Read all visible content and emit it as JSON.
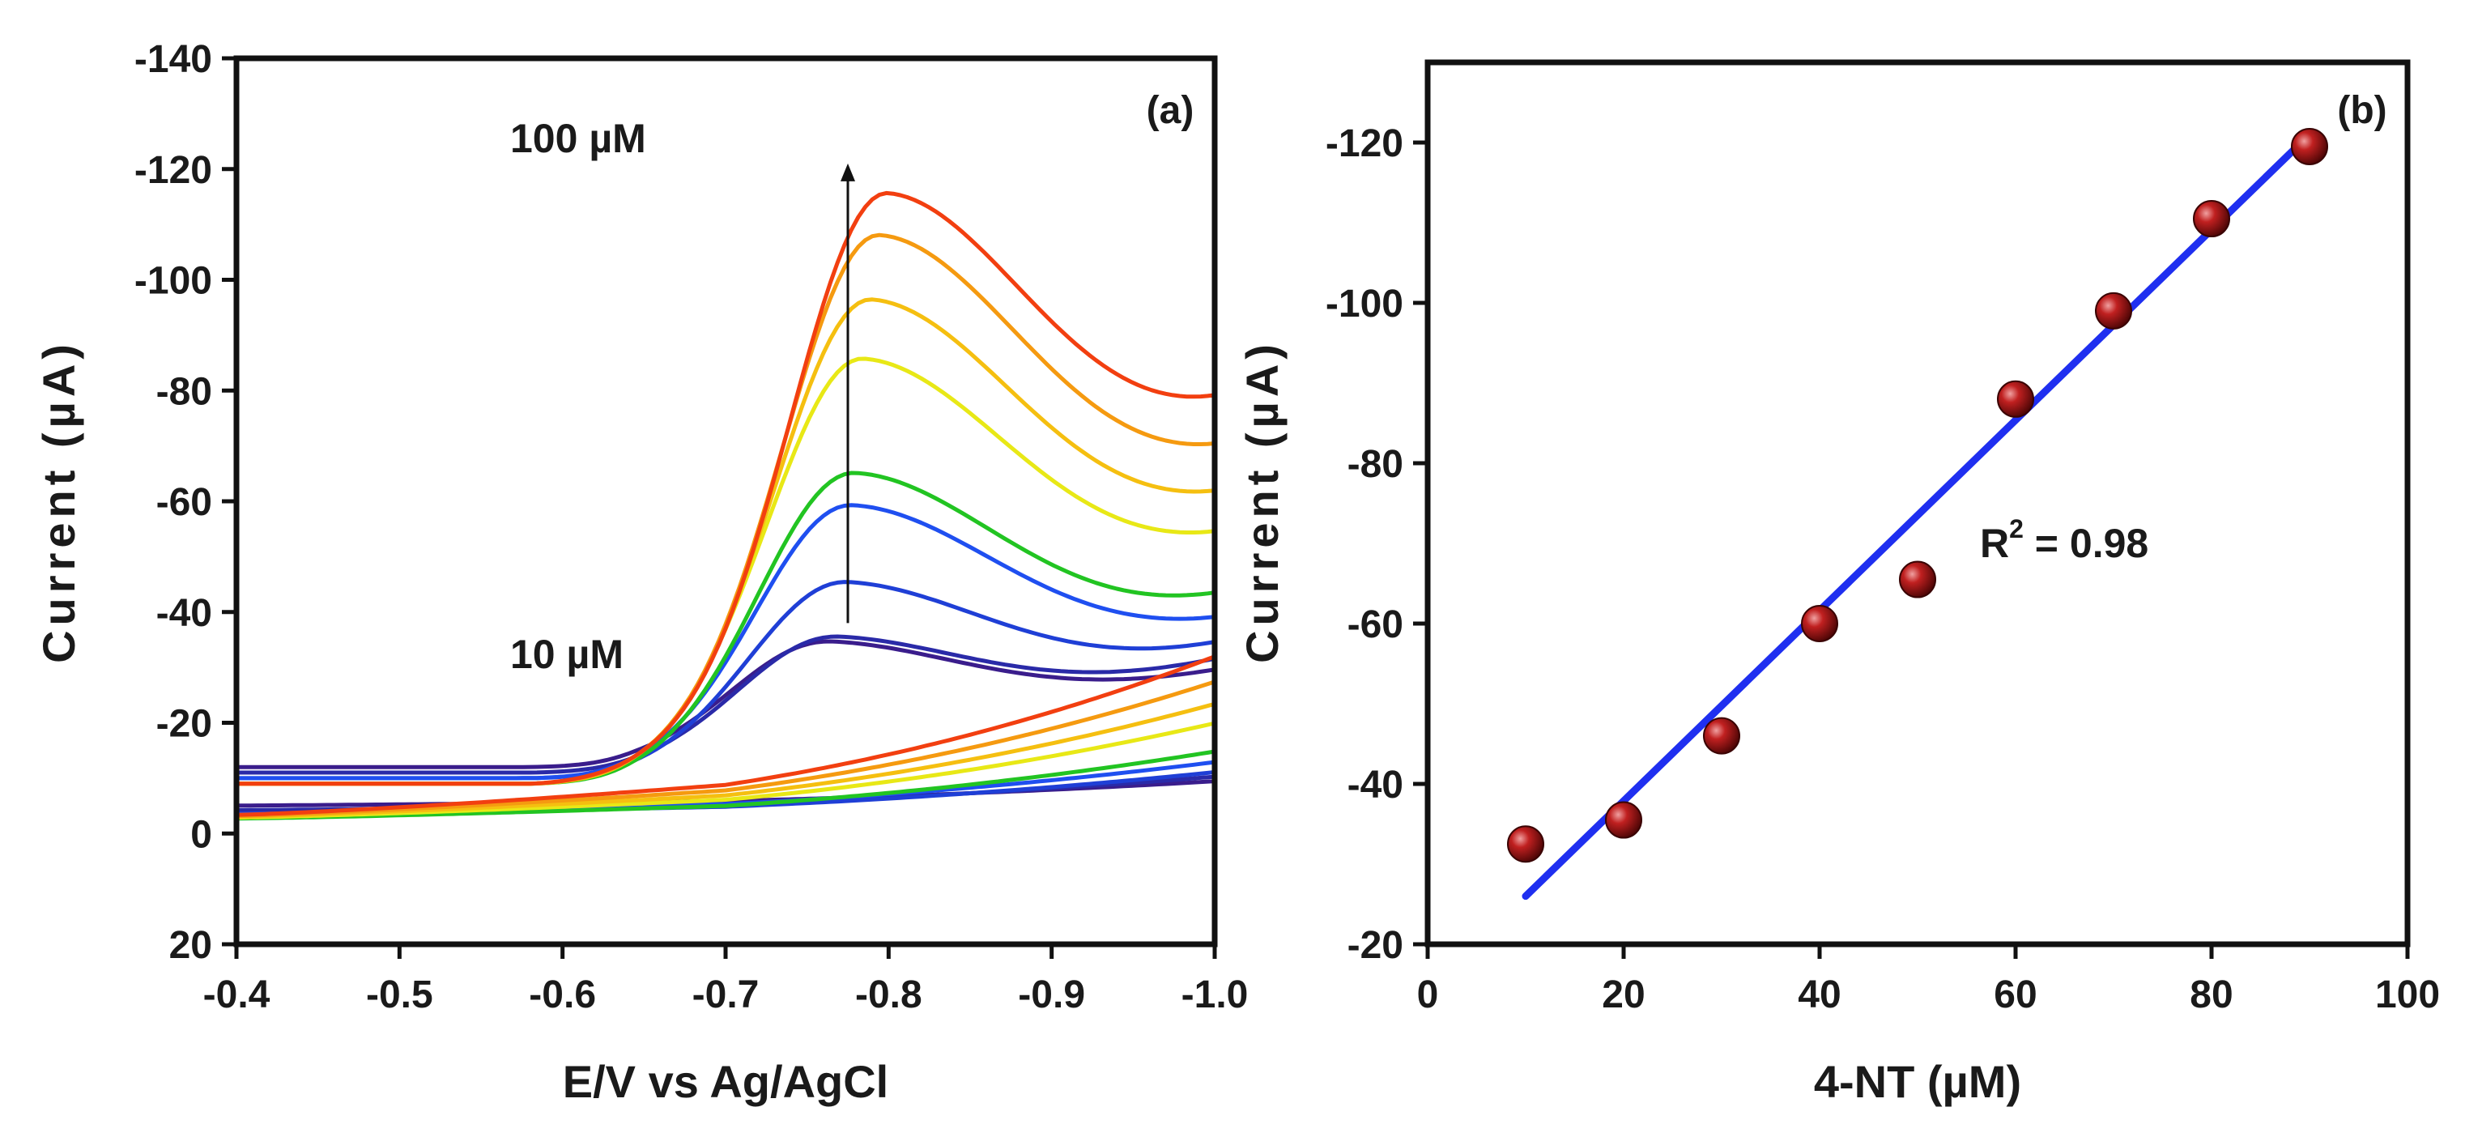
{
  "chart_data": [
    {
      "type": "line",
      "panel_label": "(a)",
      "xlabel": "E/V vs Ag/AgCl",
      "ylabel": "Current (µA)",
      "xlim": [
        -0.4,
        -1.0
      ],
      "ylim": [
        20,
        -140
      ],
      "x_ticks": [
        "-0.4",
        "-0.5",
        "-0.6",
        "-0.7",
        "-0.8",
        "-0.9",
        "-1.0"
      ],
      "y_ticks": [
        "20",
        "0",
        "-20",
        "-40",
        "-60",
        "-80",
        "-100",
        "-120",
        "-140"
      ],
      "annotations": {
        "top": "100 µM",
        "bottom": "10 µM"
      },
      "arrow": {
        "x": -0.775,
        "y_from": -38,
        "y_to": -121
      },
      "series": [
        {
          "color": "#3a1d8c",
          "peak_x": -0.765,
          "peak_y": -35,
          "start_y": -12,
          "end_y": -29
        },
        {
          "color": "#2a2aa8",
          "peak_x": -0.77,
          "peak_y": -36,
          "start_y": -11,
          "end_y": -31
        },
        {
          "color": "#1f3fd6",
          "peak_x": -0.775,
          "peak_y": -46,
          "start_y": -10,
          "end_y": -33
        },
        {
          "color": "#1f4ff0",
          "peak_x": -0.778,
          "peak_y": -60,
          "start_y": -10,
          "end_y": -36
        },
        {
          "color": "#22c422",
          "peak_x": -0.78,
          "peak_y": -66,
          "start_y": -9,
          "end_y": -40
        },
        {
          "color": "#e8e816",
          "peak_x": -0.785,
          "peak_y": -87,
          "start_y": -9,
          "end_y": -49
        },
        {
          "color": "#f5bf10",
          "peak_x": -0.79,
          "peak_y": -98,
          "start_y": -9,
          "end_y": -55
        },
        {
          "color": "#f59a10",
          "peak_x": -0.795,
          "peak_y": -110,
          "start_y": -9,
          "end_y": -62
        },
        {
          "color": "#f23f10",
          "peak_x": -0.8,
          "peak_y": -118,
          "start_y": -9,
          "end_y": -70
        }
      ],
      "line_width": 5
    },
    {
      "type": "scatter",
      "panel_label": "(b)",
      "xlabel": "4-NT (µM)",
      "ylabel": "Current (µA)",
      "xlim": [
        0,
        100
      ],
      "ylim": [
        -20,
        -130
      ],
      "x_ticks": [
        "0",
        "20",
        "40",
        "60",
        "80",
        "100"
      ],
      "y_ticks": [
        "-20",
        "-40",
        "-60",
        "-80",
        "-100",
        "-120"
      ],
      "x": [
        10,
        20,
        30,
        40,
        50,
        60,
        70,
        80,
        90
      ],
      "y": [
        -32.5,
        -35.5,
        -46,
        -60,
        -65.5,
        -88,
        -99,
        -110.5,
        -119.5
      ],
      "fit": {
        "x": [
          10,
          90
        ],
        "y": [
          -26,
          -121
        ],
        "color": "#1f2ff0"
      },
      "marker_color": "#9e1010",
      "annotation": {
        "text": "R",
        "sup": "2",
        "rest": " = 0.98"
      }
    }
  ]
}
